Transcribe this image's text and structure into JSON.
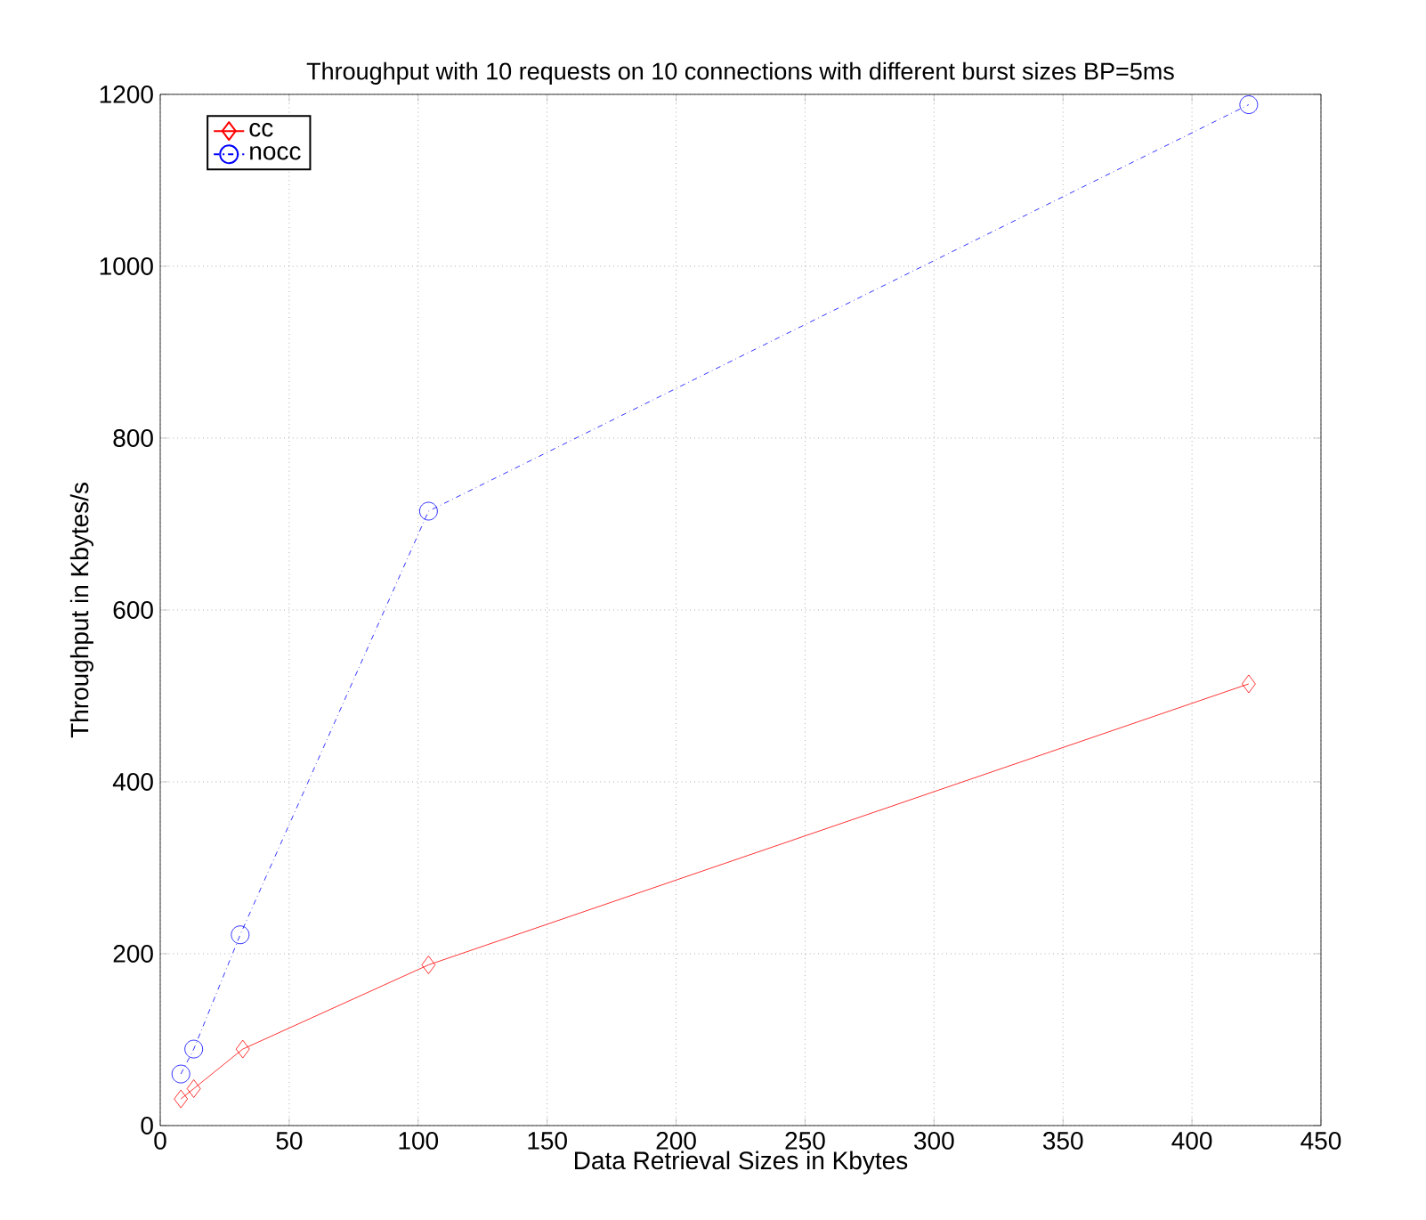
{
  "chart_data": {
    "type": "line",
    "title": "Throughput with 10 requests on 10 connections with different burst sizes BP=5ms",
    "xlabel": "Data Retrieval Sizes in Kbytes",
    "ylabel": "Throughput in Kbytes/s",
    "xlim": [
      0,
      450
    ],
    "ylim": [
      0,
      1200
    ],
    "xticks": [
      0,
      50,
      100,
      150,
      200,
      250,
      300,
      350,
      400,
      450
    ],
    "yticks": [
      0,
      200,
      400,
      600,
      800,
      1000,
      1200
    ],
    "grid": true,
    "legend": "top left",
    "series": [
      {
        "name": "cc",
        "color": "#ff0000",
        "marker": "diamond",
        "line_style": "solid",
        "x": [
          8,
          13,
          32,
          104,
          422
        ],
        "values": [
          31,
          43,
          89,
          187,
          514
        ]
      },
      {
        "name": "nocc",
        "color": "#0000ff",
        "marker": "circle",
        "line_style": "dashdot",
        "x": [
          8,
          13,
          31,
          104,
          422
        ],
        "values": [
          60,
          89,
          222,
          715,
          1188
        ]
      }
    ]
  }
}
